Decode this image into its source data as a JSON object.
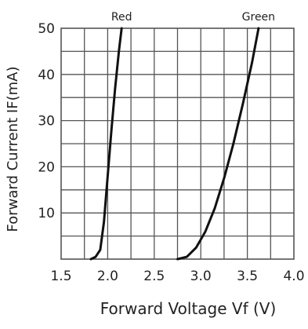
{
  "chart_data": {
    "type": "line",
    "xlabel": "Forward Voltage Vf (V)",
    "ylabel": "Forward Current IF(mA)",
    "xlim": [
      1.5,
      4.0
    ],
    "ylim": [
      0,
      50
    ],
    "x_ticks": [
      1.5,
      2.0,
      2.5,
      3.0,
      3.5,
      4.0
    ],
    "x_tick_labels": [
      "1.5",
      "2.0",
      "2.5",
      "3.0",
      "3.5",
      "4.0"
    ],
    "y_ticks": [
      10,
      20,
      30,
      40,
      50
    ],
    "y_tick_labels": [
      "10",
      "20",
      "30",
      "40",
      "50"
    ],
    "grid": true,
    "series": [
      {
        "name": "Red",
        "points": [
          [
            1.82,
            0
          ],
          [
            1.87,
            0.5
          ],
          [
            1.92,
            2
          ],
          [
            1.96,
            8
          ],
          [
            2.0,
            18
          ],
          [
            2.04,
            28
          ],
          [
            2.08,
            37
          ],
          [
            2.12,
            45
          ],
          [
            2.15,
            50
          ]
        ]
      },
      {
        "name": "Green",
        "points": [
          [
            2.75,
            0
          ],
          [
            2.85,
            0.5
          ],
          [
            2.95,
            2.5
          ],
          [
            3.05,
            6
          ],
          [
            3.15,
            11
          ],
          [
            3.25,
            17.5
          ],
          [
            3.35,
            25
          ],
          [
            3.45,
            33.5
          ],
          [
            3.55,
            42.5
          ],
          [
            3.62,
            50
          ]
        ]
      }
    ],
    "colors": {
      "line": "#111111",
      "grid": "#555555",
      "text": "#222222"
    }
  }
}
